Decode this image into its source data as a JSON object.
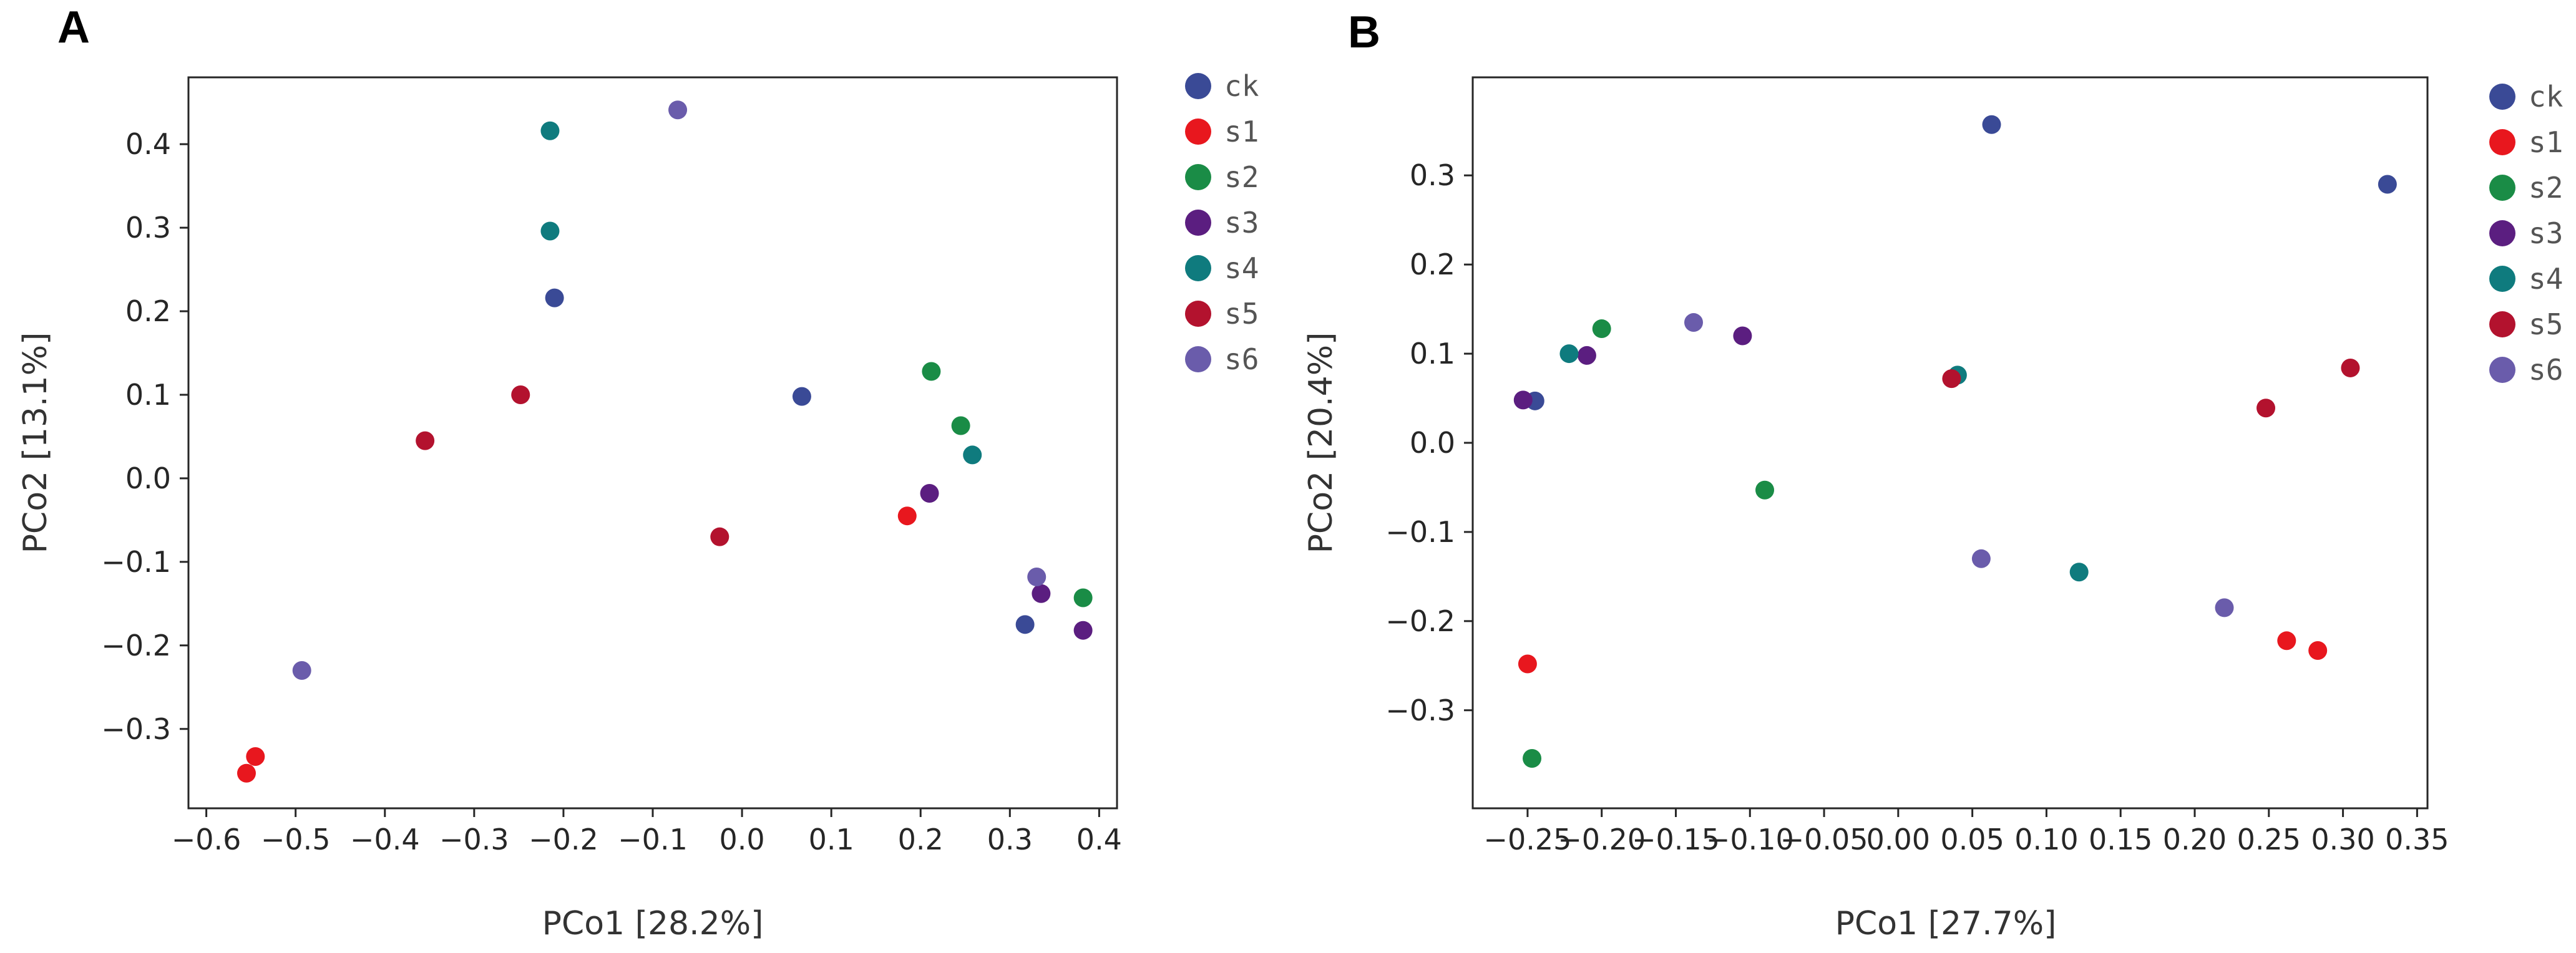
{
  "chart_data": [
    {
      "type": "scatter",
      "panel": "A",
      "xlabel": "PCo1 [28.2%]",
      "ylabel": "PCo2 [13.1%]",
      "xlim": [
        -0.62,
        0.42
      ],
      "ylim": [
        -0.395,
        0.48
      ],
      "xticks": [
        -0.6,
        -0.5,
        -0.4,
        -0.3,
        -0.2,
        -0.1,
        0.0,
        0.1,
        0.2,
        0.3,
        0.4
      ],
      "yticks": [
        -0.3,
        -0.2,
        -0.1,
        0.0,
        0.1,
        0.2,
        0.3,
        0.4
      ],
      "xtick_labels": [
        "−0.6",
        "−0.5",
        "−0.4",
        "−0.3",
        "−0.2",
        "−0.1",
        "0.0",
        "0.1",
        "0.2",
        "0.3",
        "0.4"
      ],
      "ytick_labels": [
        "−0.3",
        "−0.2",
        "−0.1",
        "0.0",
        "0.1",
        "0.2",
        "0.3",
        "0.4"
      ],
      "legend_position": "right",
      "series": [
        {
          "name": "ck",
          "color": "#3a4a96",
          "points": [
            [
              -0.21,
              0.216
            ],
            [
              0.067,
              0.098
            ],
            [
              0.317,
              -0.175
            ]
          ]
        },
        {
          "name": "s1",
          "color": "#e8171e",
          "points": [
            [
              -0.555,
              -0.353
            ],
            [
              -0.545,
              -0.333
            ],
            [
              0.185,
              -0.045
            ]
          ]
        },
        {
          "name": "s2",
          "color": "#1a8c46",
          "points": [
            [
              0.212,
              0.128
            ],
            [
              0.245,
              0.063
            ],
            [
              0.382,
              -0.143
            ]
          ]
        },
        {
          "name": "s3",
          "color": "#5b1e80",
          "points": [
            [
              0.21,
              -0.018
            ],
            [
              0.335,
              -0.138
            ],
            [
              0.382,
              -0.182
            ]
          ]
        },
        {
          "name": "s4",
          "color": "#0f7b7e",
          "points": [
            [
              -0.215,
              0.416
            ],
            [
              -0.215,
              0.296
            ],
            [
              0.258,
              0.028
            ]
          ]
        },
        {
          "name": "s5",
          "color": "#b3122e",
          "points": [
            [
              -0.355,
              0.045
            ],
            [
              -0.248,
              0.1
            ],
            [
              -0.025,
              -0.07
            ]
          ]
        },
        {
          "name": "s6",
          "color": "#6a5cab",
          "points": [
            [
              -0.072,
              0.441
            ],
            [
              -0.493,
              -0.23
            ],
            [
              0.33,
              -0.118
            ]
          ]
        }
      ]
    },
    {
      "type": "scatter",
      "panel": "B",
      "xlabel": "PCo1 [27.7%]",
      "ylabel": "PCo2 [20.4%]",
      "xlim": [
        -0.287,
        0.357
      ],
      "ylim": [
        -0.41,
        0.41
      ],
      "xticks": [
        -0.25,
        -0.2,
        -0.15,
        -0.1,
        -0.05,
        0.0,
        0.05,
        0.1,
        0.15,
        0.2,
        0.25,
        0.3,
        0.35
      ],
      "yticks": [
        -0.3,
        -0.2,
        -0.1,
        0.0,
        0.1,
        0.2,
        0.3
      ],
      "xtick_labels": [
        "−0.25",
        "−0.20",
        "−0.15",
        "−0.10",
        "−0.05",
        "0.00",
        "0.05",
        "0.10",
        "0.15",
        "0.20",
        "0.25",
        "0.30",
        "0.35"
      ],
      "ytick_labels": [
        "−0.3",
        "−0.2",
        "−0.1",
        "0.0",
        "0.1",
        "0.2",
        "0.3"
      ],
      "legend_position": "right",
      "series": [
        {
          "name": "ck",
          "color": "#3a4a96",
          "points": [
            [
              -0.245,
              0.047
            ],
            [
              0.063,
              0.357
            ],
            [
              0.33,
              0.29
            ]
          ]
        },
        {
          "name": "s1",
          "color": "#e8171e",
          "points": [
            [
              -0.25,
              -0.248
            ],
            [
              0.262,
              -0.222
            ],
            [
              0.283,
              -0.233
            ]
          ]
        },
        {
          "name": "s2",
          "color": "#1a8c46",
          "points": [
            [
              -0.2,
              0.128
            ],
            [
              -0.247,
              -0.354
            ],
            [
              -0.09,
              -0.053
            ]
          ]
        },
        {
          "name": "s3",
          "color": "#5b1e80",
          "points": [
            [
              -0.253,
              0.048
            ],
            [
              -0.21,
              0.098
            ],
            [
              -0.105,
              0.12
            ]
          ]
        },
        {
          "name": "s4",
          "color": "#0f7b7e",
          "points": [
            [
              -0.222,
              0.1
            ],
            [
              0.04,
              0.076
            ],
            [
              0.122,
              -0.145
            ]
          ]
        },
        {
          "name": "s5",
          "color": "#b3122e",
          "points": [
            [
              0.036,
              0.072
            ],
            [
              0.248,
              0.039
            ],
            [
              0.305,
              0.084
            ]
          ]
        },
        {
          "name": "s6",
          "color": "#6a5cab",
          "points": [
            [
              -0.138,
              0.135
            ],
            [
              0.056,
              -0.13
            ],
            [
              0.22,
              -0.185
            ]
          ]
        }
      ]
    }
  ]
}
